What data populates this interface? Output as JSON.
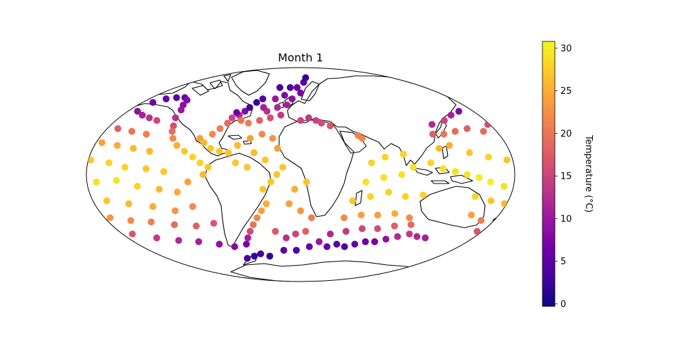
{
  "title": "Month 1",
  "colorbar": {
    "label": "Temperature (°C)",
    "min": -0.3,
    "max": 30.8,
    "ticks": [
      0,
      5,
      10,
      15,
      20,
      25,
      30
    ],
    "tick_labels": [
      "0",
      "5",
      "10",
      "15",
      "20",
      "25",
      "30"
    ],
    "colormap": "plasma",
    "colors": [
      "#0d0887",
      "#46039f",
      "#7201a8",
      "#9c179e",
      "#bd3786",
      "#d8576b",
      "#ed7953",
      "#fb9f3a",
      "#fdca26",
      "#f0f921"
    ]
  },
  "map": {
    "projection": "mollweide",
    "coastline_color": "#000000"
  },
  "chart_data": {
    "type": "scatter",
    "title": "Month 1",
    "colorbar_label": "Temperature (°C)",
    "series": [
      {
        "points": [
          {
            "lon": -168,
            "lat": 52,
            "temp": 7
          },
          {
            "lon": -160,
            "lat": 55,
            "temp": 6
          },
          {
            "lon": -150,
            "lat": 56,
            "temp": 5
          },
          {
            "lon": -140,
            "lat": 56,
            "temp": 6
          },
          {
            "lon": -133,
            "lat": 54,
            "temp": 8
          },
          {
            "lon": -130,
            "lat": 50,
            "temp": 9
          },
          {
            "lon": -126,
            "lat": 46,
            "temp": 10
          },
          {
            "lon": -124,
            "lat": 40,
            "temp": 13
          },
          {
            "lon": -120,
            "lat": 34,
            "temp": 16
          },
          {
            "lon": -118,
            "lat": 30,
            "temp": 19
          },
          {
            "lon": -114,
            "lat": 25,
            "temp": 22
          },
          {
            "lon": -108,
            "lat": 20,
            "temp": 25
          },
          {
            "lon": -100,
            "lat": 16,
            "temp": 27
          },
          {
            "lon": -92,
            "lat": 12,
            "temp": 28
          },
          {
            "lon": -85,
            "lat": 8,
            "temp": 28
          },
          {
            "lon": -170,
            "lat": 45,
            "temp": 9
          },
          {
            "lon": -160,
            "lat": 42,
            "temp": 11
          },
          {
            "lon": -150,
            "lat": 40,
            "temp": 13
          },
          {
            "lon": -140,
            "lat": 38,
            "temp": 15
          },
          {
            "lon": -170,
            "lat": 32,
            "temp": 18
          },
          {
            "lon": -155,
            "lat": 30,
            "temp": 20
          },
          {
            "lon": -140,
            "lat": 28,
            "temp": 21
          },
          {
            "lon": -175,
            "lat": 22,
            "temp": 24
          },
          {
            "lon": -160,
            "lat": 20,
            "temp": 25
          },
          {
            "lon": -145,
            "lat": 18,
            "temp": 26
          },
          {
            "lon": -130,
            "lat": 16,
            "temp": 26
          },
          {
            "lon": -178,
            "lat": 10,
            "temp": 27
          },
          {
            "lon": -162,
            "lat": 8,
            "temp": 28
          },
          {
            "lon": -148,
            "lat": 5,
            "temp": 28
          },
          {
            "lon": -130,
            "lat": 4,
            "temp": 27
          },
          {
            "lon": -115,
            "lat": 2,
            "temp": 27
          },
          {
            "lon": -172,
            "lat": -5,
            "temp": 29
          },
          {
            "lon": -155,
            "lat": -4,
            "temp": 29
          },
          {
            "lon": -138,
            "lat": -8,
            "temp": 28
          },
          {
            "lon": -120,
            "lat": -10,
            "temp": 26
          },
          {
            "lon": -105,
            "lat": -12,
            "temp": 25
          },
          {
            "lon": -95,
            "lat": -5,
            "temp": 24
          },
          {
            "lon": -168,
            "lat": -18,
            "temp": 27
          },
          {
            "lon": -150,
            "lat": -20,
            "temp": 26
          },
          {
            "lon": -130,
            "lat": -22,
            "temp": 25
          },
          {
            "lon": -112,
            "lat": -25,
            "temp": 23
          },
          {
            "lon": -95,
            "lat": -22,
            "temp": 22
          },
          {
            "lon": -175,
            "lat": -30,
            "temp": 23
          },
          {
            "lon": -158,
            "lat": -32,
            "temp": 22
          },
          {
            "lon": -140,
            "lat": -33,
            "temp": 21
          },
          {
            "lon": -120,
            "lat": -35,
            "temp": 19
          },
          {
            "lon": -100,
            "lat": -36,
            "temp": 18
          },
          {
            "lon": -82,
            "lat": -34,
            "temp": 17
          },
          {
            "lon": -170,
            "lat": -42,
            "temp": 17
          },
          {
            "lon": -150,
            "lat": -45,
            "temp": 14
          },
          {
            "lon": -130,
            "lat": -47,
            "temp": 12
          },
          {
            "lon": -110,
            "lat": -48,
            "temp": 11
          },
          {
            "lon": -90,
            "lat": -50,
            "temp": 9
          },
          {
            "lon": -75,
            "lat": -52,
            "temp": 8
          },
          {
            "lon": -72,
            "lat": -62,
            "temp": 3
          },
          {
            "lon": -60,
            "lat": -60,
            "temp": 2
          },
          {
            "lon": -50,
            "lat": -58,
            "temp": 3
          },
          {
            "lon": -40,
            "lat": -60,
            "temp": 2
          },
          {
            "lon": -60,
            "lat": -50,
            "temp": 7
          },
          {
            "lon": -55,
            "lat": -45,
            "temp": 11
          },
          {
            "lon": -50,
            "lat": -40,
            "temp": 16
          },
          {
            "lon": -45,
            "lat": -35,
            "temp": 20
          },
          {
            "lon": -40,
            "lat": -30,
            "temp": 22
          },
          {
            "lon": -35,
            "lat": -25,
            "temp": 24
          },
          {
            "lon": -30,
            "lat": -20,
            "temp": 25
          },
          {
            "lon": -32,
            "lat": -10,
            "temp": 27
          },
          {
            "lon": -25,
            "lat": -5,
            "temp": 27
          },
          {
            "lon": -20,
            "lat": 0,
            "temp": 27
          },
          {
            "lon": -15,
            "lat": 5,
            "temp": 27
          },
          {
            "lon": -25,
            "lat": -40,
            "temp": 17
          },
          {
            "lon": -15,
            "lat": -45,
            "temp": 13
          },
          {
            "lon": -5,
            "lat": -42,
            "temp": 15
          },
          {
            "lon": 5,
            "lat": -40,
            "temp": 18
          },
          {
            "lon": 10,
            "lat": -30,
            "temp": 21
          },
          {
            "lon": 0,
            "lat": -25,
            "temp": 23
          },
          {
            "lon": -10,
            "lat": -20,
            "temp": 24
          },
          {
            "lon": -5,
            "lat": -10,
            "temp": 25
          },
          {
            "lon": 5,
            "lat": -5,
            "temp": 27
          },
          {
            "lon": -20,
            "lat": -55,
            "temp": 5
          },
          {
            "lon": -5,
            "lat": -55,
            "temp": 4
          },
          {
            "lon": 10,
            "lat": -52,
            "temp": 6
          },
          {
            "lon": 20,
            "lat": -48,
            "temp": 10
          },
          {
            "lon": 30,
            "lat": -52,
            "temp": 6
          },
          {
            "lon": 40,
            "lat": -50,
            "temp": 5
          },
          {
            "lon": 50,
            "lat": -52,
            "temp": 4
          },
          {
            "lon": 60,
            "lat": -50,
            "temp": 5
          },
          {
            "lon": 70,
            "lat": -48,
            "temp": 6
          },
          {
            "lon": 80,
            "lat": -48,
            "temp": 7
          },
          {
            "lon": 90,
            "lat": -46,
            "temp": 9
          },
          {
            "lon": 100,
            "lat": -44,
            "temp": 12
          },
          {
            "lon": 110,
            "lat": -42,
            "temp": 14
          },
          {
            "lon": 120,
            "lat": -44,
            "temp": 12
          },
          {
            "lon": 130,
            "lat": -45,
            "temp": 11
          },
          {
            "lon": 30,
            "lat": -42,
            "temp": 12
          },
          {
            "lon": 45,
            "lat": -40,
            "temp": 14
          },
          {
            "lon": 60,
            "lat": -38,
            "temp": 15
          },
          {
            "lon": 75,
            "lat": -38,
            "temp": 16
          },
          {
            "lon": 90,
            "lat": -36,
            "temp": 18
          },
          {
            "lon": 40,
            "lat": -30,
            "temp": 22
          },
          {
            "lon": 55,
            "lat": -28,
            "temp": 24
          },
          {
            "lon": 70,
            "lat": -28,
            "temp": 24
          },
          {
            "lon": 85,
            "lat": -27,
            "temp": 25
          },
          {
            "lon": 100,
            "lat": -30,
            "temp": 22
          },
          {
            "lon": 105,
            "lat": -35,
            "temp": 19
          },
          {
            "lon": 45,
            "lat": -18,
            "temp": 27
          },
          {
            "lon": 60,
            "lat": -15,
            "temp": 28
          },
          {
            "lon": 75,
            "lat": -12,
            "temp": 28
          },
          {
            "lon": 90,
            "lat": -15,
            "temp": 28
          },
          {
            "lon": 105,
            "lat": -14,
            "temp": 28
          },
          {
            "lon": 55,
            "lat": -5,
            "temp": 29
          },
          {
            "lon": 70,
            "lat": -2,
            "temp": 29
          },
          {
            "lon": 85,
            "lat": 0,
            "temp": 29
          },
          {
            "lon": 60,
            "lat": 8,
            "temp": 28
          },
          {
            "lon": 72,
            "lat": 12,
            "temp": 28
          },
          {
            "lon": 88,
            "lat": 14,
            "temp": 28
          },
          {
            "lon": 95,
            "lat": 5,
            "temp": 29
          },
          {
            "lon": 110,
            "lat": 8,
            "temp": 28
          },
          {
            "lon": 120,
            "lat": 4,
            "temp": 29
          },
          {
            "lon": 130,
            "lat": 2,
            "temp": 29
          },
          {
            "lon": 140,
            "lat": 0,
            "temp": 29
          },
          {
            "lon": 150,
            "lat": -2,
            "temp": 30
          },
          {
            "lon": 160,
            "lat": -5,
            "temp": 30
          },
          {
            "lon": 172,
            "lat": -8,
            "temp": 29
          },
          {
            "lon": 150,
            "lat": -15,
            "temp": 28
          },
          {
            "lon": 165,
            "lat": -18,
            "temp": 27
          },
          {
            "lon": 178,
            "lat": -20,
            "temp": 26
          },
          {
            "lon": 155,
            "lat": -28,
            "temp": 24
          },
          {
            "lon": 168,
            "lat": -32,
            "temp": 21
          },
          {
            "lon": 175,
            "lat": -40,
            "temp": 17
          },
          {
            "lon": 120,
            "lat": 18,
            "temp": 26
          },
          {
            "lon": 130,
            "lat": 20,
            "temp": 25
          },
          {
            "lon": 145,
            "lat": 15,
            "temp": 27
          },
          {
            "lon": 160,
            "lat": 12,
            "temp": 28
          },
          {
            "lon": 175,
            "lat": 10,
            "temp": 27
          },
          {
            "lon": 130,
            "lat": 28,
            "temp": 20
          },
          {
            "lon": 142,
            "lat": 30,
            "temp": 19
          },
          {
            "lon": 155,
            "lat": 32,
            "temp": 18
          },
          {
            "lon": 168,
            "lat": 30,
            "temp": 19
          },
          {
            "lon": 178,
            "lat": 35,
            "temp": 16
          },
          {
            "lon": 140,
            "lat": 38,
            "temp": 15
          },
          {
            "lon": 152,
            "lat": 42,
            "temp": 11
          },
          {
            "lon": 165,
            "lat": 45,
            "temp": 8
          },
          {
            "lon": 125,
            "lat": 35,
            "temp": 12
          },
          {
            "lon": 120,
            "lat": 28,
            "temp": 18
          },
          {
            "lon": 55,
            "lat": 25,
            "temp": 22
          },
          {
            "lon": 52,
            "lat": 27,
            "temp": 21
          },
          {
            "lon": -80,
            "lat": 28,
            "temp": 22
          },
          {
            "lon": -75,
            "lat": 32,
            "temp": 21
          },
          {
            "lon": -70,
            "lat": 36,
            "temp": 19
          },
          {
            "lon": -68,
            "lat": 40,
            "temp": 15
          },
          {
            "lon": -62,
            "lat": 42,
            "temp": 12
          },
          {
            "lon": -58,
            "lat": 45,
            "temp": 8
          },
          {
            "lon": -66,
            "lat": 44,
            "temp": 6
          },
          {
            "lon": -55,
            "lat": 48,
            "temp": 3
          },
          {
            "lon": -50,
            "lat": 52,
            "temp": 2
          },
          {
            "lon": -45,
            "lat": 55,
            "temp": 4
          },
          {
            "lon": -58,
            "lat": 38,
            "temp": 20
          },
          {
            "lon": -50,
            "lat": 36,
            "temp": 21
          },
          {
            "lon": -40,
            "lat": 38,
            "temp": 18
          },
          {
            "lon": -30,
            "lat": 40,
            "temp": 16
          },
          {
            "lon": -20,
            "lat": 42,
            "temp": 14
          },
          {
            "lon": -35,
            "lat": 45,
            "temp": 13
          },
          {
            "lon": -25,
            "lat": 48,
            "temp": 12
          },
          {
            "lon": -15,
            "lat": 50,
            "temp": 11
          },
          {
            "lon": -10,
            "lat": 55,
            "temp": 9
          },
          {
            "lon": -20,
            "lat": 58,
            "temp": 8
          },
          {
            "lon": -30,
            "lat": 55,
            "temp": 10
          },
          {
            "lon": -40,
            "lat": 48,
            "temp": 11
          },
          {
            "lon": 0,
            "lat": 60,
            "temp": 7
          },
          {
            "lon": -5,
            "lat": 65,
            "temp": 6
          },
          {
            "lon": 5,
            "lat": 70,
            "temp": 5
          },
          {
            "lon": -15,
            "lat": 65,
            "temp": 4
          },
          {
            "lon": -30,
            "lat": 65,
            "temp": 3
          },
          {
            "lon": 10,
            "lat": 75,
            "temp": 2
          },
          {
            "lon": 0,
            "lat": 38,
            "temp": 15
          },
          {
            "lon": 8,
            "lat": 40,
            "temp": 14
          },
          {
            "lon": 15,
            "lat": 38,
            "temp": 15
          },
          {
            "lon": 20,
            "lat": 36,
            "temp": 16
          },
          {
            "lon": 28,
            "lat": 34,
            "temp": 17
          },
          {
            "lon": -90,
            "lat": 25,
            "temp": 24
          },
          {
            "lon": -85,
            "lat": 22,
            "temp": 26
          },
          {
            "lon": -78,
            "lat": 18,
            "temp": 27
          },
          {
            "lon": -70,
            "lat": 16,
            "temp": 27
          },
          {
            "lon": -62,
            "lat": 15,
            "temp": 27
          },
          {
            "lon": -55,
            "lat": 20,
            "temp": 26
          },
          {
            "lon": -45,
            "lat": 25,
            "temp": 24
          },
          {
            "lon": -35,
            "lat": 28,
            "temp": 22
          },
          {
            "lon": -25,
            "lat": 25,
            "temp": 23
          },
          {
            "lon": -20,
            "lat": 18,
            "temp": 24
          },
          {
            "lon": -40,
            "lat": 15,
            "temp": 26
          },
          {
            "lon": -30,
            "lat": 10,
            "temp": 27
          },
          {
            "lon": -45,
            "lat": 5,
            "temp": 27
          },
          {
            "lon": -55,
            "lat": 8,
            "temp": 27
          },
          {
            "lon": -78,
            "lat": 5,
            "temp": 27
          },
          {
            "lon": -82,
            "lat": 0,
            "temp": 26
          }
        ]
      }
    ]
  }
}
